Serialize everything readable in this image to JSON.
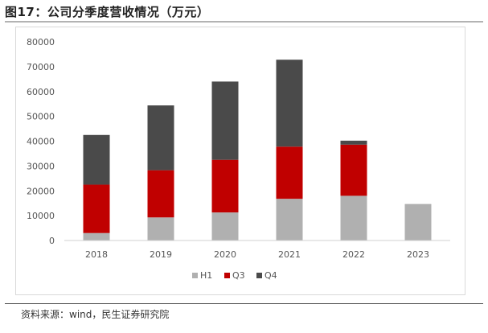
{
  "figure": {
    "title": "图17：公司分季度营收情况（万元）",
    "source": "资料来源：wind，民生证券研究院"
  },
  "chart_data": {
    "type": "bar",
    "stacked": true,
    "title": "公司分季度营收情况（万元）",
    "categories": [
      "2018",
      "2019",
      "2020",
      "2021",
      "2022",
      "2023"
    ],
    "series": [
      {
        "name": "H1",
        "color": "#b0b0b0",
        "values": [
          3000,
          9300,
          11300,
          16800,
          18000,
          14700
        ]
      },
      {
        "name": "Q3",
        "color": "#c00000",
        "values": [
          19500,
          19000,
          21200,
          21000,
          20600,
          0
        ]
      },
      {
        "name": "Q4",
        "color": "#4a4a4a",
        "values": [
          20000,
          26100,
          31500,
          35000,
          1600,
          0
        ]
      }
    ],
    "ylim": [
      0,
      80000
    ],
    "yticks": [
      0,
      10000,
      20000,
      30000,
      40000,
      50000,
      60000,
      70000,
      80000
    ],
    "xlabel": "",
    "ylabel": "",
    "legend": "bottom-center",
    "grid": false
  }
}
